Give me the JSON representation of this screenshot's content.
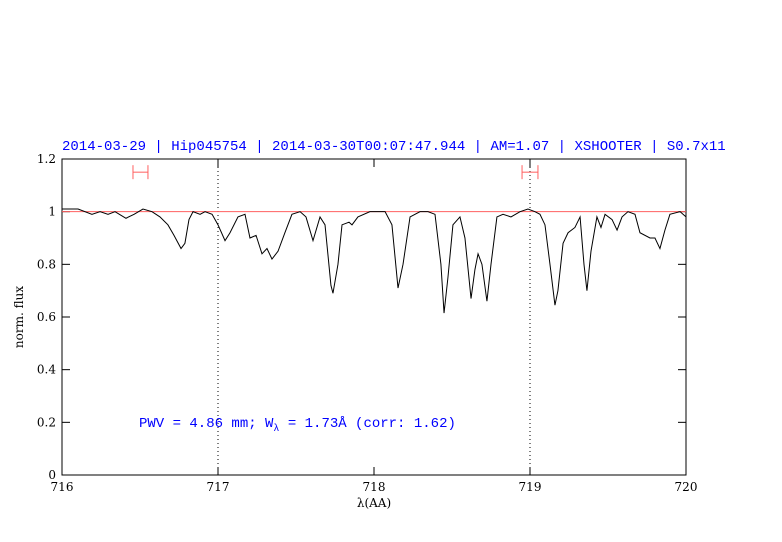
{
  "chart_data": {
    "type": "line",
    "title": "2014-03-29 | Hip045754 | 2014-03-30T00:07:47.944 | AM=1.07 | XSHOOTER | S0.7x11",
    "xlabel": "λ(AA)",
    "ylabel": "norm. flux",
    "annotation": {
      "pre": "PWV = 4.86 mm; W",
      "sub": "λ",
      "post": " = 1.73Å (corr: 1.62)"
    },
    "xlim": [
      716,
      720
    ],
    "ylim": [
      0,
      1.2
    ],
    "xticks": [
      716,
      717,
      718,
      719,
      720
    ],
    "yticks": [
      0,
      0.2,
      0.4,
      0.6,
      0.8,
      1,
      1.2
    ],
    "reference_line": {
      "value": 1,
      "color": "#ff6060"
    },
    "vlines": [
      717,
      719
    ],
    "windows": [
      {
        "x": [
          716.455,
          716.551
        ],
        "y": 1.15
      },
      {
        "x": [
          718.949,
          719.051
        ],
        "y": 1.15
      }
    ],
    "window_color": "#ff6060",
    "x": [
      716.0,
      716.103,
      716.192,
      716.244,
      716.295,
      716.34,
      716.41,
      716.462,
      716.519,
      716.577,
      716.628,
      716.679,
      716.718,
      716.763,
      716.788,
      716.814,
      716.84,
      716.885,
      716.917,
      716.962,
      717.0,
      717.045,
      717.077,
      717.128,
      717.173,
      717.205,
      717.244,
      717.282,
      717.314,
      717.346,
      717.385,
      717.429,
      717.474,
      717.526,
      717.564,
      717.609,
      717.654,
      717.686,
      717.724,
      717.737,
      717.769,
      717.795,
      717.84,
      717.859,
      717.897,
      717.974,
      718.071,
      718.115,
      718.154,
      718.186,
      718.231,
      718.295,
      718.346,
      718.391,
      718.429,
      718.449,
      718.474,
      718.506,
      718.551,
      718.583,
      718.622,
      718.647,
      718.667,
      718.692,
      718.724,
      718.75,
      718.788,
      718.827,
      718.878,
      718.936,
      718.987,
      719.032,
      719.064,
      719.096,
      719.128,
      719.16,
      719.179,
      719.212,
      719.244,
      719.288,
      719.321,
      719.346,
      719.365,
      719.391,
      719.429,
      719.455,
      719.481,
      719.526,
      719.558,
      719.59,
      719.628,
      719.673,
      719.705,
      719.769,
      719.801,
      719.833,
      719.865,
      719.897,
      719.962,
      720.0
    ],
    "series": [
      {
        "color": "#000000",
        "values": [
          1.01,
          1.01,
          0.99,
          1.0,
          0.99,
          1.0,
          0.975,
          0.99,
          1.01,
          1.0,
          0.98,
          0.95,
          0.91,
          0.86,
          0.88,
          0.97,
          1.0,
          0.99,
          1.0,
          0.99,
          0.95,
          0.89,
          0.92,
          0.98,
          0.99,
          0.9,
          0.91,
          0.84,
          0.86,
          0.82,
          0.85,
          0.92,
          0.99,
          1.0,
          0.98,
          0.89,
          0.98,
          0.95,
          0.72,
          0.69,
          0.8,
          0.95,
          0.96,
          0.95,
          0.98,
          1.0,
          1.0,
          0.95,
          0.71,
          0.8,
          0.98,
          1.0,
          1.0,
          0.99,
          0.8,
          0.615,
          0.75,
          0.95,
          0.98,
          0.9,
          0.67,
          0.78,
          0.84,
          0.8,
          0.66,
          0.8,
          0.98,
          0.99,
          0.98,
          1.0,
          1.01,
          1.0,
          0.99,
          0.95,
          0.8,
          0.645,
          0.7,
          0.88,
          0.92,
          0.94,
          0.98,
          0.8,
          0.7,
          0.85,
          0.98,
          0.94,
          0.99,
          0.97,
          0.93,
          0.98,
          1.0,
          0.99,
          0.92,
          0.9,
          0.9,
          0.86,
          0.93,
          0.99,
          1.0,
          0.98
        ]
      }
    ],
    "title_color": "#0000ff"
  }
}
